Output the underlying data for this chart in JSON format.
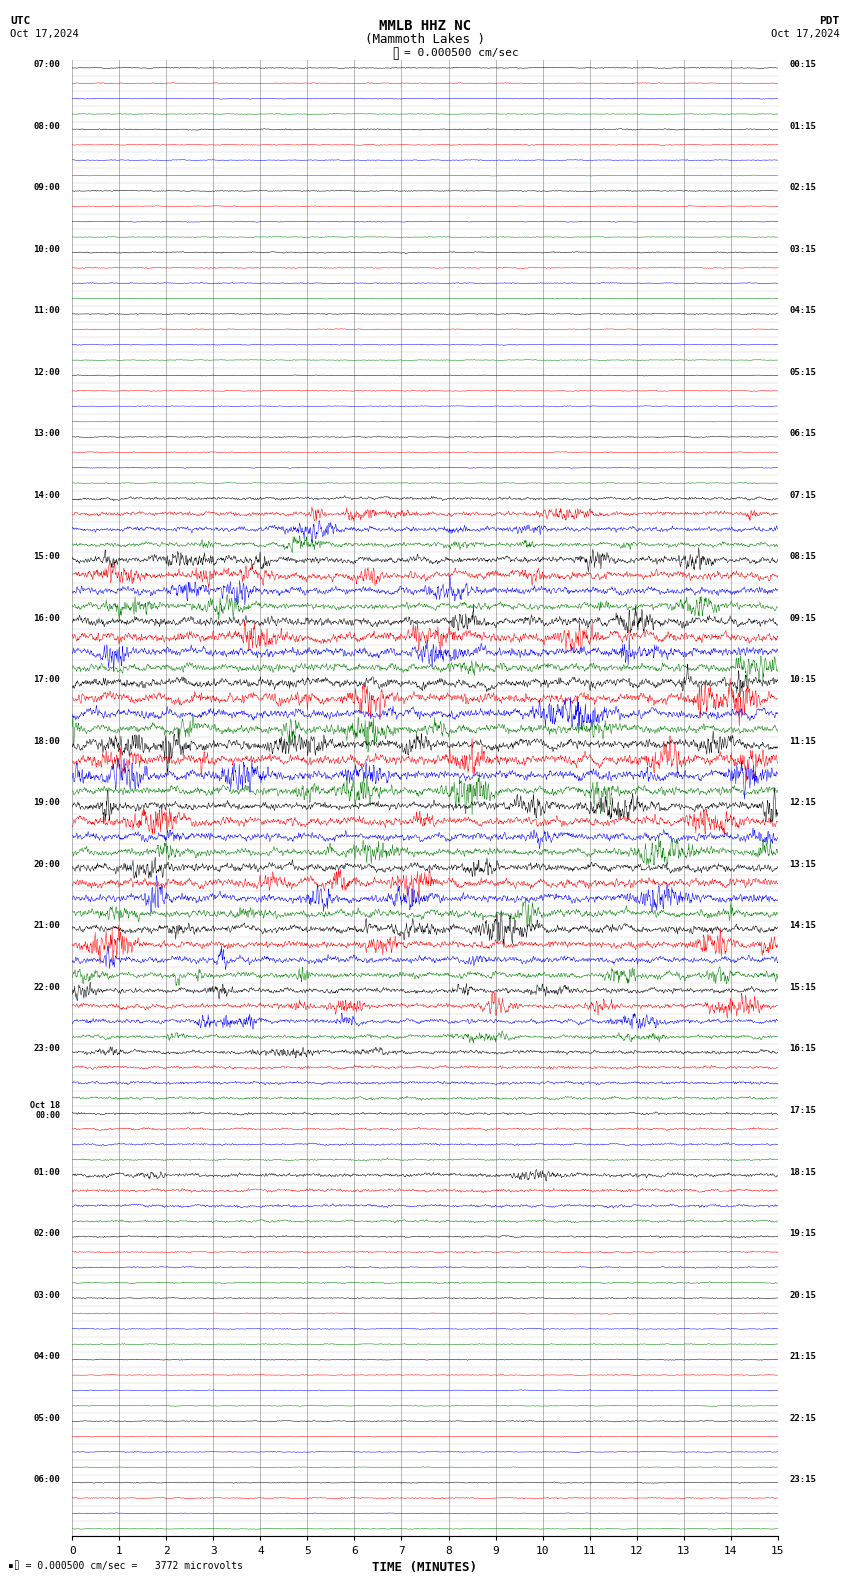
{
  "title_line1": "MMLB HHZ NC",
  "title_line2": "(Mammoth Lakes )",
  "scale_label": "= 0.000500 cm/sec",
  "utc_label": "UTC",
  "pdt_label": "PDT",
  "date_left": "Oct 17,2024",
  "date_right": "Oct 17,2024",
  "xlabel": "TIME (MINUTES)",
  "footer": "= 0.000500 cm/sec =   3772 microvolts",
  "time_minutes": 15,
  "num_rows": 96,
  "traces_per_hour": 4,
  "num_hours": 24,
  "fig_width": 8.5,
  "fig_height": 15.84,
  "bg_color": "#ffffff",
  "grid_color": "#808080",
  "text_color": "#000000",
  "colors_cycle": [
    "#000000",
    "#ff0000",
    "#0000ff",
    "#008000"
  ],
  "left_times_utc": [
    "07:00",
    "08:00",
    "09:00",
    "10:00",
    "11:00",
    "12:00",
    "13:00",
    "14:00",
    "15:00",
    "16:00",
    "17:00",
    "18:00",
    "19:00",
    "20:00",
    "21:00",
    "22:00",
    "23:00",
    "Oct 18\n00:00",
    "01:00",
    "02:00",
    "03:00",
    "04:00",
    "05:00",
    "06:00"
  ],
  "right_times_pdt": [
    "00:15",
    "01:15",
    "02:15",
    "03:15",
    "04:15",
    "05:15",
    "06:15",
    "07:15",
    "08:15",
    "09:15",
    "10:15",
    "11:15",
    "12:15",
    "13:15",
    "14:15",
    "15:15",
    "16:15",
    "17:15",
    "18:15",
    "19:15",
    "20:15",
    "21:15",
    "22:15",
    "23:15"
  ],
  "noise_seed": 42,
  "amp_by_row": [
    0.07,
    0.06,
    0.05,
    0.05,
    0.08,
    0.07,
    0.06,
    0.05,
    0.07,
    0.06,
    0.06,
    0.05,
    0.08,
    0.07,
    0.07,
    0.06,
    0.07,
    0.06,
    0.06,
    0.05,
    0.06,
    0.06,
    0.05,
    0.05,
    0.07,
    0.07,
    0.06,
    0.06,
    0.2,
    0.3,
    0.35,
    0.3,
    0.45,
    0.55,
    0.5,
    0.45,
    0.6,
    0.7,
    0.65,
    0.55,
    0.65,
    0.7,
    0.65,
    0.6,
    0.65,
    0.7,
    0.65,
    0.6,
    0.55,
    0.6,
    0.55,
    0.5,
    0.55,
    0.65,
    0.6,
    0.55,
    0.55,
    0.5,
    0.45,
    0.4,
    0.35,
    0.35,
    0.3,
    0.25,
    0.25,
    0.2,
    0.2,
    0.18,
    0.15,
    0.15,
    0.13,
    0.12,
    0.25,
    0.2,
    0.18,
    0.15,
    0.12,
    0.1,
    0.1,
    0.09,
    0.08,
    0.08,
    0.07,
    0.07,
    0.07,
    0.06,
    0.06,
    0.06,
    0.07,
    0.06,
    0.06,
    0.05,
    0.07,
    0.08,
    0.06,
    0.05
  ]
}
